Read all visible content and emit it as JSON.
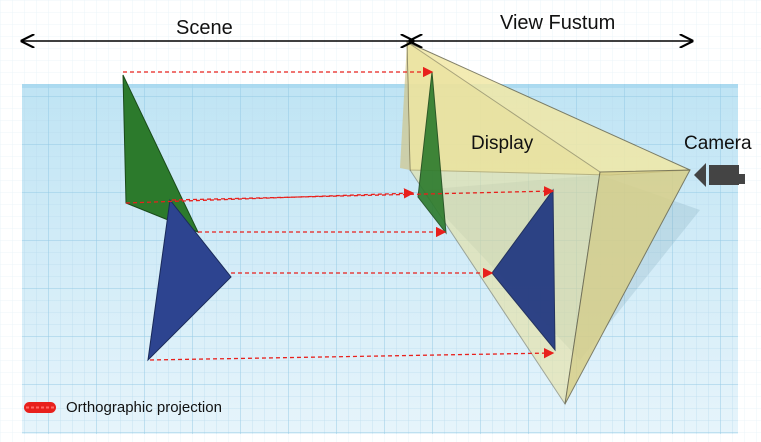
{
  "labels": {
    "scene": "Scene",
    "view_frustum": "View Fustum",
    "display": "Display",
    "camera": "Camera"
  },
  "legend": {
    "items": [
      {
        "label": "Orthographic projection",
        "color": "#e8201c",
        "style": "dashed-arrow"
      }
    ]
  },
  "colors": {
    "grid_background": "#cfe9f6",
    "grid_line": "#9dcfe8",
    "frustum_fill": "#e8e09a",
    "green_triangle": "#2c7a2c",
    "blue_triangle": "#2d4490",
    "projection_arrow": "#e8201c",
    "camera_icon": "#444444"
  },
  "icons": {
    "camera": "camera-icon"
  }
}
